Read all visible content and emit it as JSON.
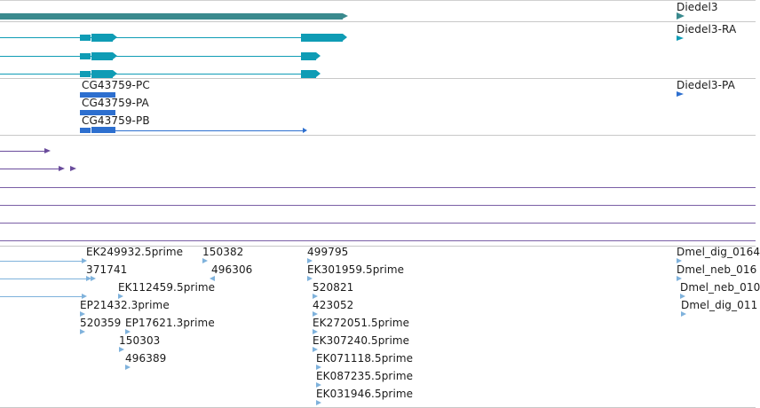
{
  "colors": {
    "gene": "#3a8a8e",
    "transcript": "#0f9cb5",
    "cds": "#2d6fcf",
    "purple": "#6a4c9c",
    "est": "#7fb2dc",
    "separator": "#c8c8c8"
  },
  "gene_track": {
    "gene_label": "Diedel3",
    "transcript_label": "Diedel3-RA",
    "protein_label": "Diedel3-PA",
    "cg_labels": [
      "CG43759-PC",
      "CG43759-PA",
      "CG43759-PB"
    ]
  },
  "est_track": {
    "left_labels": [
      "EK249932.5prime",
      "371741",
      "EK112459.5prime",
      "EP21432.3prime",
      "520359",
      "EP17621.3prime",
      "150303",
      "496389"
    ],
    "mid_labels": [
      "150382",
      "496306"
    ],
    "center_labels": [
      "499795",
      "EK301959.5prime",
      "520821",
      "423052",
      "EK272051.5prime",
      "EK307240.5prime",
      "EK071118.5prime",
      "EK087235.5prime",
      "EK031946.5prime"
    ],
    "right_labels": [
      "Dmel_dig_0164",
      "Dmel_neb_016",
      "Dmel_neb_010",
      "Dmel_dig_011"
    ]
  }
}
